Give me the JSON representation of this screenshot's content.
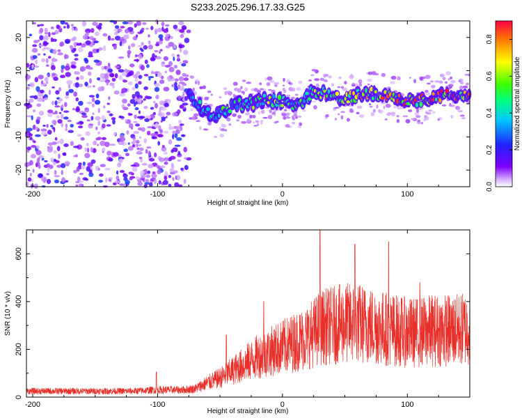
{
  "chart_data": [
    {
      "type": "heatmap",
      "title": "S233.2025.296.17.33.G25",
      "xlabel": "Height of straight line (km)",
      "ylabel": "Frequency (Hz)",
      "xlim": [
        -205,
        150
      ],
      "ylim": [
        -25,
        25
      ],
      "x_ticks": [
        -200,
        -100,
        0,
        100
      ],
      "y_ticks": [
        -20,
        -10,
        0,
        10,
        20
      ],
      "colorbar": {
        "label": "Normalized spectral amplitude",
        "range": [
          0.0,
          0.9
        ],
        "ticks": [
          0.0,
          0.2,
          0.4,
          0.6,
          0.8
        ]
      },
      "noise_region_x": [
        -205,
        -75
      ],
      "ridge": {
        "x": [
          -75,
          -65,
          -55,
          -45,
          -35,
          -25,
          -15,
          -5,
          5,
          15,
          25,
          35,
          45,
          55,
          65,
          75,
          85,
          95,
          105,
          115,
          125,
          135,
          145
        ],
        "freq": [
          3,
          -1,
          -4,
          -2,
          0,
          0,
          1,
          1,
          0,
          0,
          4,
          3,
          2,
          2,
          3,
          3,
          2,
          1,
          1,
          1,
          2,
          3,
          2
        ],
        "amplitude": [
          0.35,
          0.4,
          0.45,
          0.5,
          0.5,
          0.55,
          0.6,
          0.6,
          0.55,
          0.5,
          0.6,
          0.65,
          0.65,
          0.65,
          0.7,
          0.7,
          0.8,
          0.85,
          0.8,
          0.8,
          0.85,
          0.85,
          0.75
        ]
      }
    },
    {
      "type": "line",
      "xlabel": "Height of straight line (km)",
      "ylabel": "SNR (10 * v/v)",
      "xlim": [
        -205,
        150
      ],
      "ylim": [
        0,
        700
      ],
      "x_ticks": [
        -200,
        -100,
        0,
        100
      ],
      "y_ticks": [
        0,
        200,
        400,
        600
      ],
      "series": [
        {
          "name": "SNR",
          "color": "#e8302a",
          "x": [
            -205,
            -180,
            -160,
            -140,
            -120,
            -100,
            -80,
            -70,
            -60,
            -50,
            -40,
            -30,
            -20,
            -10,
            0,
            10,
            20,
            30,
            40,
            50,
            60,
            70,
            80,
            90,
            100,
            110,
            120,
            130,
            140,
            150
          ],
          "y": [
            25,
            25,
            25,
            25,
            25,
            30,
            30,
            35,
            60,
            80,
            110,
            140,
            170,
            190,
            210,
            230,
            250,
            290,
            300,
            310,
            310,
            300,
            290,
            280,
            270,
            270,
            280,
            280,
            280,
            290
          ],
          "peaks": [
            {
              "x": -101,
              "y": 105
            },
            {
              "x": -45,
              "y": 260
            },
            {
              "x": -15,
              "y": 400
            },
            {
              "x": 30,
              "y": 700
            },
            {
              "x": 58,
              "y": 640
            },
            {
              "x": 85,
              "y": 650
            },
            {
              "x": 110,
              "y": 480
            }
          ]
        }
      ]
    }
  ]
}
